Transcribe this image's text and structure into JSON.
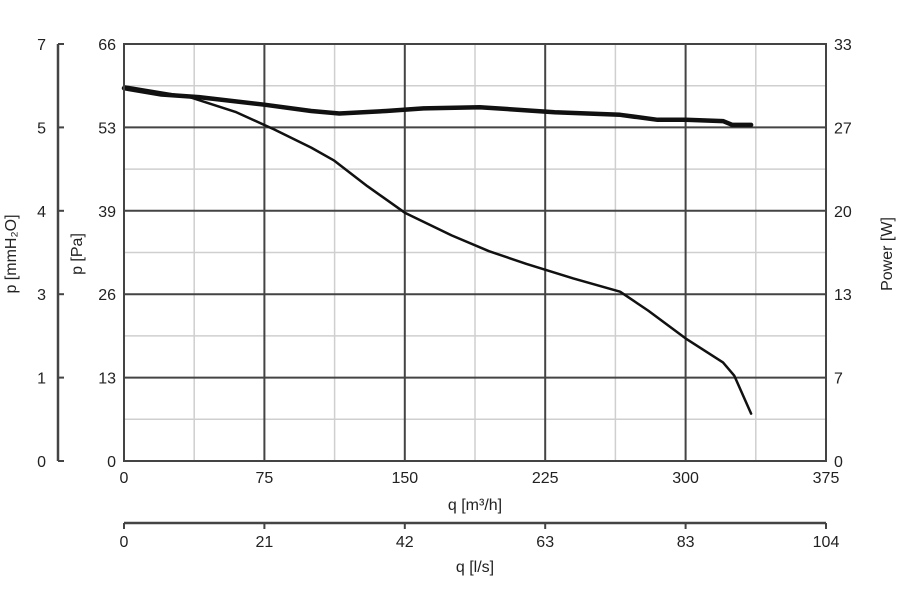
{
  "chart_data": {
    "type": "line",
    "x_primary": {
      "label": "q [m³/h]",
      "range": [
        0,
        375
      ],
      "ticks": [
        "0",
        "75",
        "150",
        "225",
        "300",
        "375"
      ]
    },
    "x_secondary": {
      "label": "q [l/s]",
      "range": [
        0,
        104
      ],
      "ticks": [
        "0",
        "21",
        "42",
        "63",
        "83",
        "104"
      ]
    },
    "y_primary": {
      "label": "p [Pa]",
      "range": [
        0,
        66
      ],
      "ticks": [
        "0",
        "13",
        "26",
        "39",
        "53",
        "66"
      ]
    },
    "y_secondary_left": {
      "label": "p [mmH₂O]",
      "ticks": [
        "0",
        "1",
        "3",
        "4",
        "5",
        "7"
      ]
    },
    "y_right": {
      "label": "Power [W]",
      "range": [
        0,
        33
      ],
      "ticks": [
        "0",
        "7",
        "13",
        "20",
        "27",
        "33"
      ]
    },
    "grid": true,
    "series": [
      {
        "role": "pressure",
        "axis": "left",
        "stroke": "thin",
        "x": [
          0,
          35,
          60,
          80,
          100,
          112,
          130,
          150,
          175,
          195,
          215,
          240,
          265,
          280,
          300,
          320,
          326,
          335
        ],
        "y": [
          59.3,
          57.6,
          55.2,
          52.5,
          49.6,
          47.6,
          43.5,
          39.3,
          35.7,
          33.2,
          31.2,
          28.9,
          26.8,
          23.8,
          19.4,
          15.6,
          13.5,
          7.5
        ]
      },
      {
        "role": "power",
        "axis": "right",
        "stroke": "bold",
        "x": [
          0,
          20,
          40,
          75,
          100,
          115,
          140,
          160,
          190,
          230,
          265,
          285,
          300,
          320,
          325,
          335
        ],
        "y": [
          29.5,
          29.0,
          28.8,
          28.2,
          27.7,
          27.5,
          27.7,
          27.9,
          28.0,
          27.6,
          27.4,
          27.0,
          27.0,
          26.9,
          26.6,
          26.6
        ]
      }
    ]
  }
}
